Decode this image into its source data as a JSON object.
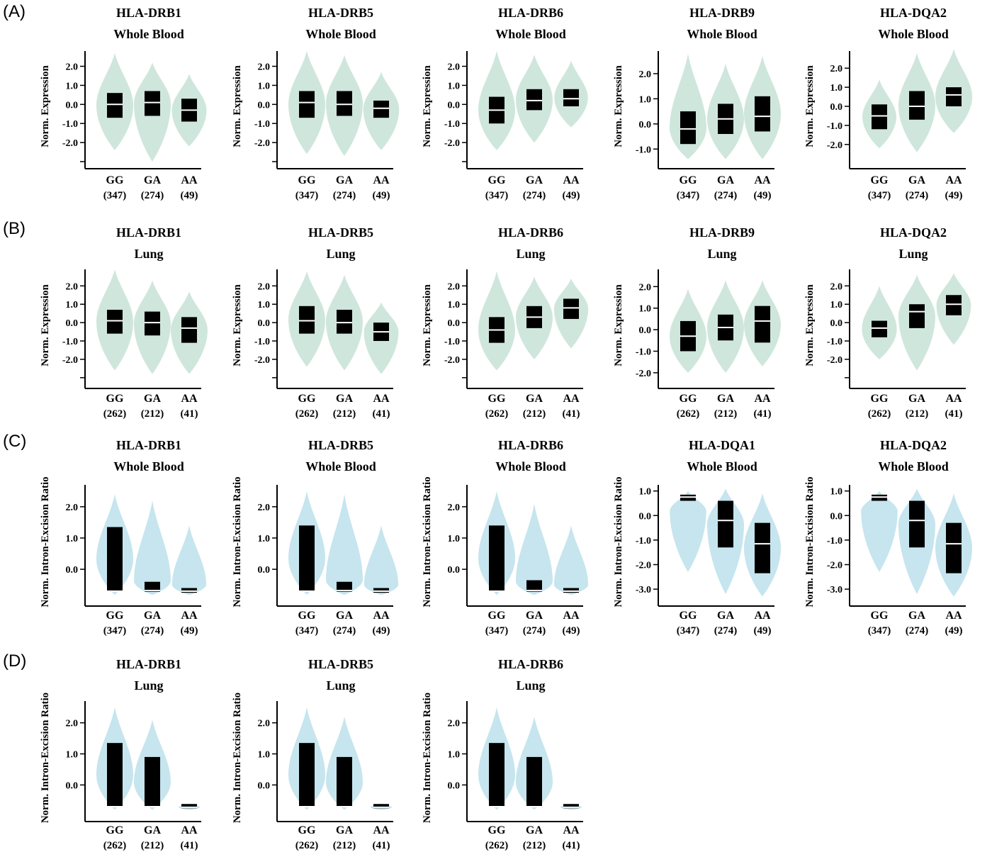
{
  "panel_letters": [
    "(A)",
    "(B)",
    "(C)",
    "(D)"
  ],
  "colors": {
    "expression_violin": "#cfe6dd",
    "intron_violin": "#c6e5ee",
    "box": "#000000",
    "median": "#ffffff"
  },
  "chart_data": [
    {
      "type": "violin",
      "panel": "A",
      "gene": "HLA-DRB1",
      "tissue": "Whole Blood",
      "ylabel": "Norm. Expression",
      "yticks": [
        "2.0",
        "1.0",
        "0.0",
        "-1.0",
        "-2.0"
      ],
      "ylim": [
        -3.0,
        2.8
      ],
      "categories": [
        "GG",
        "GA",
        "AA"
      ],
      "counts": [
        "(347)",
        "(274)",
        "(49)"
      ],
      "groups": [
        {
          "vmin": -2.4,
          "vmax": 2.7,
          "q1": -0.7,
          "median": 0.0,
          "q3": 0.6
        },
        {
          "vmin": -3.0,
          "vmax": 2.2,
          "q1": -0.6,
          "median": 0.1,
          "q3": 0.7
        },
        {
          "vmin": -2.2,
          "vmax": 1.6,
          "q1": -0.9,
          "median": -0.3,
          "q3": 0.3
        }
      ]
    },
    {
      "type": "violin",
      "panel": "A",
      "gene": "HLA-DRB5",
      "tissue": "Whole Blood",
      "ylabel": "Norm. Expression",
      "yticks": [
        "2.0",
        "1.0",
        "0.0",
        "-1.0",
        "-2.0"
      ],
      "ylim": [
        -3.0,
        2.8
      ],
      "categories": [
        "GG",
        "GA",
        "AA"
      ],
      "counts": [
        "(347)",
        "(274)",
        "(49)"
      ],
      "groups": [
        {
          "vmin": -2.6,
          "vmax": 2.8,
          "q1": -0.7,
          "median": 0.1,
          "q3": 0.7
        },
        {
          "vmin": -2.7,
          "vmax": 2.6,
          "q1": -0.6,
          "median": 0.0,
          "q3": 0.7
        },
        {
          "vmin": -2.4,
          "vmax": 1.7,
          "q1": -0.7,
          "median": -0.2,
          "q3": 0.2
        }
      ]
    },
    {
      "type": "violin",
      "panel": "A",
      "gene": "HLA-DRB6",
      "tissue": "Whole Blood",
      "ylabel": "Norm. Expression",
      "yticks": [
        "2.0",
        "1.0",
        "0.0",
        "-1.0",
        "-2.0"
      ],
      "ylim": [
        -3.0,
        2.8
      ],
      "categories": [
        "GG",
        "GA",
        "AA"
      ],
      "counts": [
        "(347)",
        "(274)",
        "(49)"
      ],
      "groups": [
        {
          "vmin": -2.4,
          "vmax": 2.8,
          "q1": -1.0,
          "median": -0.3,
          "q3": 0.4
        },
        {
          "vmin": -2.0,
          "vmax": 2.6,
          "q1": -0.3,
          "median": 0.2,
          "q3": 0.8
        },
        {
          "vmin": -1.2,
          "vmax": 2.3,
          "q1": -0.1,
          "median": 0.3,
          "q3": 0.8
        }
      ]
    },
    {
      "type": "violin",
      "panel": "A",
      "gene": "HLA-DRB9",
      "tissue": "Whole Blood",
      "ylabel": "Norm. Expression",
      "yticks": [
        "2.0",
        "1.0",
        "0.0",
        "-1.0"
      ],
      "ylim": [
        -1.5,
        2.9
      ],
      "categories": [
        "GG",
        "GA",
        "AA"
      ],
      "counts": [
        "(347)",
        "(274)",
        "(49)"
      ],
      "groups": [
        {
          "vmin": -1.4,
          "vmax": 2.8,
          "q1": -0.8,
          "median": -0.2,
          "q3": 0.5
        },
        {
          "vmin": -1.4,
          "vmax": 2.4,
          "q1": -0.4,
          "median": 0.2,
          "q3": 0.8
        },
        {
          "vmin": -1.4,
          "vmax": 2.7,
          "q1": -0.3,
          "median": 0.3,
          "q3": 1.1
        }
      ]
    },
    {
      "type": "violin",
      "panel": "A",
      "gene": "HLA-DQA2",
      "tissue": "Whole Blood",
      "ylabel": "Norm. Expression",
      "yticks": [
        "2.0",
        "1.0",
        "0.0",
        "-1.0",
        "-2.0"
      ],
      "ylim": [
        -2.9,
        2.9
      ],
      "categories": [
        "GG",
        "GA",
        "AA"
      ],
      "counts": [
        "(347)",
        "(274)",
        "(49)"
      ],
      "groups": [
        {
          "vmin": -2.2,
          "vmax": 1.4,
          "q1": -1.2,
          "median": -0.5,
          "q3": 0.1
        },
        {
          "vmin": -2.4,
          "vmax": 2.8,
          "q1": -0.7,
          "median": 0.0,
          "q3": 0.8
        },
        {
          "vmin": -1.4,
          "vmax": 3.0,
          "q1": 0.0,
          "median": 0.6,
          "q3": 1.0
        }
      ]
    },
    {
      "type": "violin",
      "panel": "B",
      "gene": "HLA-DRB1",
      "tissue": "Lung",
      "ylabel": "Norm. Expression",
      "yticks": [
        "2.0",
        "1.0",
        "0.0",
        "-1.0",
        "-2.0"
      ],
      "ylim": [
        -3.2,
        2.9
      ],
      "categories": [
        "GG",
        "GA",
        "AA"
      ],
      "counts": [
        "(262)",
        "(212)",
        "(41)"
      ],
      "groups": [
        {
          "vmin": -2.6,
          "vmax": 2.9,
          "q1": -0.6,
          "median": 0.1,
          "q3": 0.7
        },
        {
          "vmin": -2.8,
          "vmax": 2.3,
          "q1": -0.7,
          "median": 0.0,
          "q3": 0.6
        },
        {
          "vmin": -2.8,
          "vmax": 1.7,
          "q1": -1.1,
          "median": -0.3,
          "q3": 0.3
        }
      ]
    },
    {
      "type": "violin",
      "panel": "B",
      "gene": "HLA-DRB5",
      "tissue": "Lung",
      "ylabel": "Norm. Expression",
      "yticks": [
        "2.0",
        "1.0",
        "0.0",
        "-1.0",
        "-2.0"
      ],
      "ylim": [
        -3.2,
        2.9
      ],
      "categories": [
        "GG",
        "GA",
        "AA"
      ],
      "counts": [
        "(262)",
        "(212)",
        "(41)"
      ],
      "groups": [
        {
          "vmin": -2.4,
          "vmax": 2.8,
          "q1": -0.6,
          "median": 0.1,
          "q3": 0.9
        },
        {
          "vmin": -2.6,
          "vmax": 2.6,
          "q1": -0.6,
          "median": 0.0,
          "q3": 0.7
        },
        {
          "vmin": -2.8,
          "vmax": 1.1,
          "q1": -1.0,
          "median": -0.5,
          "q3": 0.0
        }
      ]
    },
    {
      "type": "violin",
      "panel": "B",
      "gene": "HLA-DRB6",
      "tissue": "Lung",
      "ylabel": "Norm. Expression",
      "yticks": [
        "2.0",
        "1.0",
        "0.0",
        "-1.0",
        "-2.0"
      ],
      "ylim": [
        -3.2,
        2.9
      ],
      "categories": [
        "GG",
        "GA",
        "AA"
      ],
      "counts": [
        "(262)",
        "(212)",
        "(41)"
      ],
      "groups": [
        {
          "vmin": -2.6,
          "vmax": 2.8,
          "q1": -1.1,
          "median": -0.4,
          "q3": 0.3
        },
        {
          "vmin": -2.0,
          "vmax": 2.5,
          "q1": -0.3,
          "median": 0.3,
          "q3": 0.9
        },
        {
          "vmin": -1.4,
          "vmax": 2.4,
          "q1": 0.2,
          "median": 0.8,
          "q3": 1.3
        }
      ]
    },
    {
      "type": "violin",
      "panel": "B",
      "gene": "HLA-DRB9",
      "tissue": "Lung",
      "ylabel": "Norm. Expression",
      "yticks": [
        "2.0",
        "1.0",
        "0.0",
        "-1.0",
        "-2.0"
      ],
      "ylim": [
        -2.4,
        2.8
      ],
      "categories": [
        "GG",
        "GA",
        "AA"
      ],
      "counts": [
        "(262)",
        "(212)",
        "(41)"
      ],
      "groups": [
        {
          "vmin": -2.0,
          "vmax": 1.9,
          "q1": -1.0,
          "median": -0.3,
          "q3": 0.4
        },
        {
          "vmin": -2.0,
          "vmax": 2.3,
          "q1": -0.5,
          "median": 0.1,
          "q3": 0.7
        },
        {
          "vmin": -1.7,
          "vmax": 2.3,
          "q1": -0.6,
          "median": 0.4,
          "q3": 1.1
        }
      ]
    },
    {
      "type": "violin",
      "panel": "B",
      "gene": "HLA-DQA2",
      "tissue": "Lung",
      "ylabel": "Norm. Expression",
      "yticks": [
        "2.0",
        "1.0",
        "0.0",
        "-1.0",
        "-2.0"
      ],
      "ylim": [
        -3.2,
        2.9
      ],
      "categories": [
        "GG",
        "GA",
        "AA"
      ],
      "counts": [
        "(262)",
        "(212)",
        "(41)"
      ],
      "groups": [
        {
          "vmin": -2.0,
          "vmax": 2.0,
          "q1": -0.8,
          "median": -0.3,
          "q3": 0.1
        },
        {
          "vmin": -2.6,
          "vmax": 2.6,
          "q1": -0.3,
          "median": 0.6,
          "q3": 1.0
        },
        {
          "vmin": -1.2,
          "vmax": 2.7,
          "q1": 0.4,
          "median": 1.0,
          "q3": 1.5
        }
      ]
    },
    {
      "type": "violin",
      "panel": "C",
      "gene": "HLA-DRB1",
      "tissue": "Whole Blood",
      "ylabel": "Norm. Intron-Excision Ratio",
      "yticks": [
        "2.0",
        "1.0",
        "0.0"
      ],
      "ylim": [
        -0.95,
        2.7
      ],
      "categories": [
        "GG",
        "GA",
        "AA"
      ],
      "counts": [
        "(347)",
        "(274)",
        "(49)"
      ],
      "groups": [
        {
          "vmin": -0.82,
          "vmax": 2.4,
          "q1": -0.7,
          "median": -0.7,
          "q3": 1.35
        },
        {
          "vmin": -0.82,
          "vmax": 2.2,
          "q1": -0.72,
          "median": -0.68,
          "q3": -0.4
        },
        {
          "vmin": -0.82,
          "vmax": 1.4,
          "q1": -0.75,
          "median": -0.7,
          "q3": -0.6
        }
      ]
    },
    {
      "type": "violin",
      "panel": "C",
      "gene": "HLA-DRB5",
      "tissue": "Whole Blood",
      "ylabel": "Norm. Intron-Excision Ratio",
      "yticks": [
        "2.0",
        "1.0",
        "0.0"
      ],
      "ylim": [
        -0.95,
        2.7
      ],
      "categories": [
        "GG",
        "GA",
        "AA"
      ],
      "counts": [
        "(347)",
        "(274)",
        "(49)"
      ],
      "groups": [
        {
          "vmin": -0.82,
          "vmax": 2.5,
          "q1": -0.7,
          "median": -0.7,
          "q3": 1.4
        },
        {
          "vmin": -0.82,
          "vmax": 2.4,
          "q1": -0.72,
          "median": -0.68,
          "q3": -0.4
        },
        {
          "vmin": -0.82,
          "vmax": 1.4,
          "q1": -0.75,
          "median": -0.7,
          "q3": -0.6
        }
      ]
    },
    {
      "type": "violin",
      "panel": "C",
      "gene": "HLA-DRB6",
      "tissue": "Whole Blood",
      "ylabel": "Norm. Intron-Excision Ratio",
      "yticks": [
        "2.0",
        "1.0",
        "0.0"
      ],
      "ylim": [
        -0.95,
        2.7
      ],
      "categories": [
        "GG",
        "GA",
        "AA"
      ],
      "counts": [
        "(347)",
        "(274)",
        "(49)"
      ],
      "groups": [
        {
          "vmin": -0.82,
          "vmax": 2.5,
          "q1": -0.7,
          "median": -0.7,
          "q3": 1.4
        },
        {
          "vmin": -0.82,
          "vmax": 2.1,
          "q1": -0.72,
          "median": -0.68,
          "q3": -0.35
        },
        {
          "vmin": -0.82,
          "vmax": 1.4,
          "q1": -0.75,
          "median": -0.7,
          "q3": -0.6
        }
      ]
    },
    {
      "type": "violin",
      "panel": "C",
      "gene": "HLA-DQA1",
      "tissue": "Whole Blood",
      "ylabel": "Norm. Intron-Excision Ratio",
      "yticks": [
        "1.0",
        "0.0",
        "-1.0",
        "-2.0",
        "-3.0"
      ],
      "ylim": [
        -3.4,
        1.25
      ],
      "categories": [
        "GG",
        "GA",
        "AA"
      ],
      "counts": [
        "(347)",
        "(274)",
        "(49)"
      ],
      "groups": [
        {
          "vmin": -2.3,
          "vmax": 1.0,
          "q1": 0.6,
          "median": 0.75,
          "q3": 0.85
        },
        {
          "vmin": -3.2,
          "vmax": 1.1,
          "q1": -1.3,
          "median": -0.2,
          "q3": 0.6
        },
        {
          "vmin": -3.3,
          "vmax": 0.9,
          "q1": -2.35,
          "median": -1.15,
          "q3": -0.3
        }
      ]
    },
    {
      "type": "violin",
      "panel": "C",
      "gene": "HLA-DQA2",
      "tissue": "Whole Blood",
      "ylabel": "Norm. Intron-Excision Ratio",
      "yticks": [
        "1.0",
        "0.0",
        "-1.0",
        "-2.0",
        "-3.0"
      ],
      "ylim": [
        -3.4,
        1.25
      ],
      "categories": [
        "GG",
        "GA",
        "AA"
      ],
      "counts": [
        "(347)",
        "(274)",
        "(49)"
      ],
      "groups": [
        {
          "vmin": -2.3,
          "vmax": 1.0,
          "q1": 0.6,
          "median": 0.75,
          "q3": 0.85
        },
        {
          "vmin": -3.2,
          "vmax": 1.1,
          "q1": -1.3,
          "median": -0.2,
          "q3": 0.6
        },
        {
          "vmin": -3.3,
          "vmax": 0.9,
          "q1": -2.35,
          "median": -1.15,
          "q3": -0.3
        }
      ]
    },
    {
      "type": "violin",
      "panel": "D",
      "gene": "HLA-DRB1",
      "tissue": "Lung",
      "ylabel": "Norm. Intron-Excision Ratio",
      "yticks": [
        "2.0",
        "1.0",
        "0.0"
      ],
      "ylim": [
        -0.95,
        2.7
      ],
      "categories": [
        "GG",
        "GA",
        "AA"
      ],
      "counts": [
        "(262)",
        "(212)",
        "(41)"
      ],
      "groups": [
        {
          "vmin": -0.8,
          "vmax": 2.5,
          "q1": -0.7,
          "median": -0.7,
          "q3": 1.35
        },
        {
          "vmin": -0.8,
          "vmax": 2.1,
          "q1": -0.72,
          "median": -0.7,
          "q3": 0.9
        },
        {
          "vmin": -0.8,
          "vmax": -0.6,
          "q1": -0.75,
          "median": -0.72,
          "q3": -0.68
        }
      ]
    },
    {
      "type": "violin",
      "panel": "D",
      "gene": "HLA-DRB5",
      "tissue": "Lung",
      "ylabel": "Norm. Intron-Excision Ratio",
      "yticks": [
        "2.0",
        "1.0",
        "0.0"
      ],
      "ylim": [
        -0.95,
        2.7
      ],
      "categories": [
        "GG",
        "GA",
        "AA"
      ],
      "counts": [
        "(262)",
        "(212)",
        "(41)"
      ],
      "groups": [
        {
          "vmin": -0.8,
          "vmax": 2.5,
          "q1": -0.7,
          "median": -0.7,
          "q3": 1.35
        },
        {
          "vmin": -0.8,
          "vmax": 2.2,
          "q1": -0.72,
          "median": -0.7,
          "q3": 0.9
        },
        {
          "vmin": -0.8,
          "vmax": -0.6,
          "q1": -0.75,
          "median": -0.72,
          "q3": -0.68
        }
      ]
    },
    {
      "type": "violin",
      "panel": "D",
      "gene": "HLA-DRB6",
      "tissue": "Lung",
      "ylabel": "Norm. Intron-Excision Ratio",
      "yticks": [
        "2.0",
        "1.0",
        "0.0"
      ],
      "ylim": [
        -0.95,
        2.7
      ],
      "categories": [
        "GG",
        "GA",
        "AA"
      ],
      "counts": [
        "(262)",
        "(212)",
        "(41)"
      ],
      "groups": [
        {
          "vmin": -0.8,
          "vmax": 2.5,
          "q1": -0.7,
          "median": -0.7,
          "q3": 1.35
        },
        {
          "vmin": -0.8,
          "vmax": 2.2,
          "q1": -0.72,
          "median": -0.7,
          "q3": 0.9
        },
        {
          "vmin": -0.8,
          "vmax": -0.6,
          "q1": -0.75,
          "median": -0.72,
          "q3": -0.68
        }
      ]
    }
  ]
}
